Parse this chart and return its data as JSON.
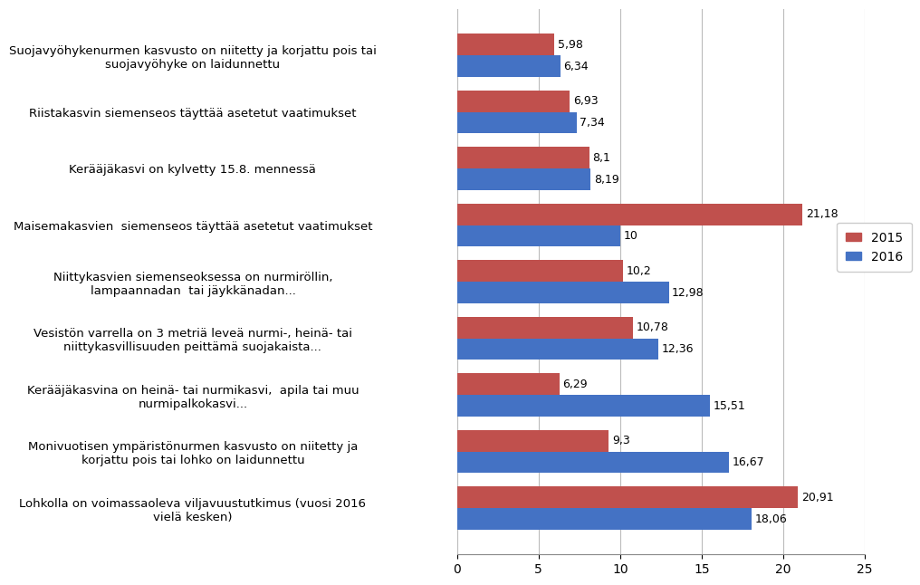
{
  "categories": [
    "Suojavyöhykenurmen kasvusto on niitetty ja korjattu pois tai\nsuojavyöhyke on laidunnettu",
    "Riistakasvin siemenseos täyttää asetetut vaatimukset",
    "Kerääjäkasvi on kylvetty 15.8. mennessä",
    "Maisemakasvien  siemenseos täyttää asetetut vaatimukset",
    "Niittykasvien siemenseoksessa on nurmiröllin,\nlampaannadan  tai jäykkänadan...",
    "Vesistön varrella on 3 metriä leveä nurmi-, heinä- tai\nniittykasvillisuuden peittämä suojakaista...",
    "Kerääjäkasvina on heinä- tai nurmikasvi,  apila tai muu\nnurmipalkokasvi...",
    "Monivuotisen ympäristönurmen kasvusto on niitetty ja\nkorjattu pois tai lohko on laidunnettu",
    "Lohkolla on voimassaoleva viljavuustutkimus (vuosi 2016\nvielä kesken)"
  ],
  "values_2015": [
    5.98,
    6.93,
    8.1,
    21.18,
    10.2,
    10.78,
    6.29,
    9.3,
    20.91
  ],
  "values_2016": [
    6.34,
    7.34,
    8.19,
    10.0,
    12.98,
    12.36,
    15.51,
    16.67,
    18.06
  ],
  "labels_2015": [
    "5,98",
    "6,93",
    "8,1",
    "21,18",
    "10,2",
    "10,78",
    "6,29",
    "9,3",
    "20,91"
  ],
  "labels_2016": [
    "6,34",
    "7,34",
    "8,19",
    "10",
    "12,98",
    "12,36",
    "15,51",
    "16,67",
    "18,06"
  ],
  "color_2015": "#C0504D",
  "color_2016": "#4472C4",
  "legend_2015": "2015",
  "legend_2016": "2016",
  "xlim": [
    0,
    25
  ],
  "xticks": [
    0,
    5,
    10,
    15,
    20,
    25
  ],
  "bar_height": 0.38,
  "label_fontsize": 9.5,
  "tick_fontsize": 10,
  "value_fontsize": 9,
  "background_color": "#FFFFFF",
  "grid_color": "#BBBBBB"
}
